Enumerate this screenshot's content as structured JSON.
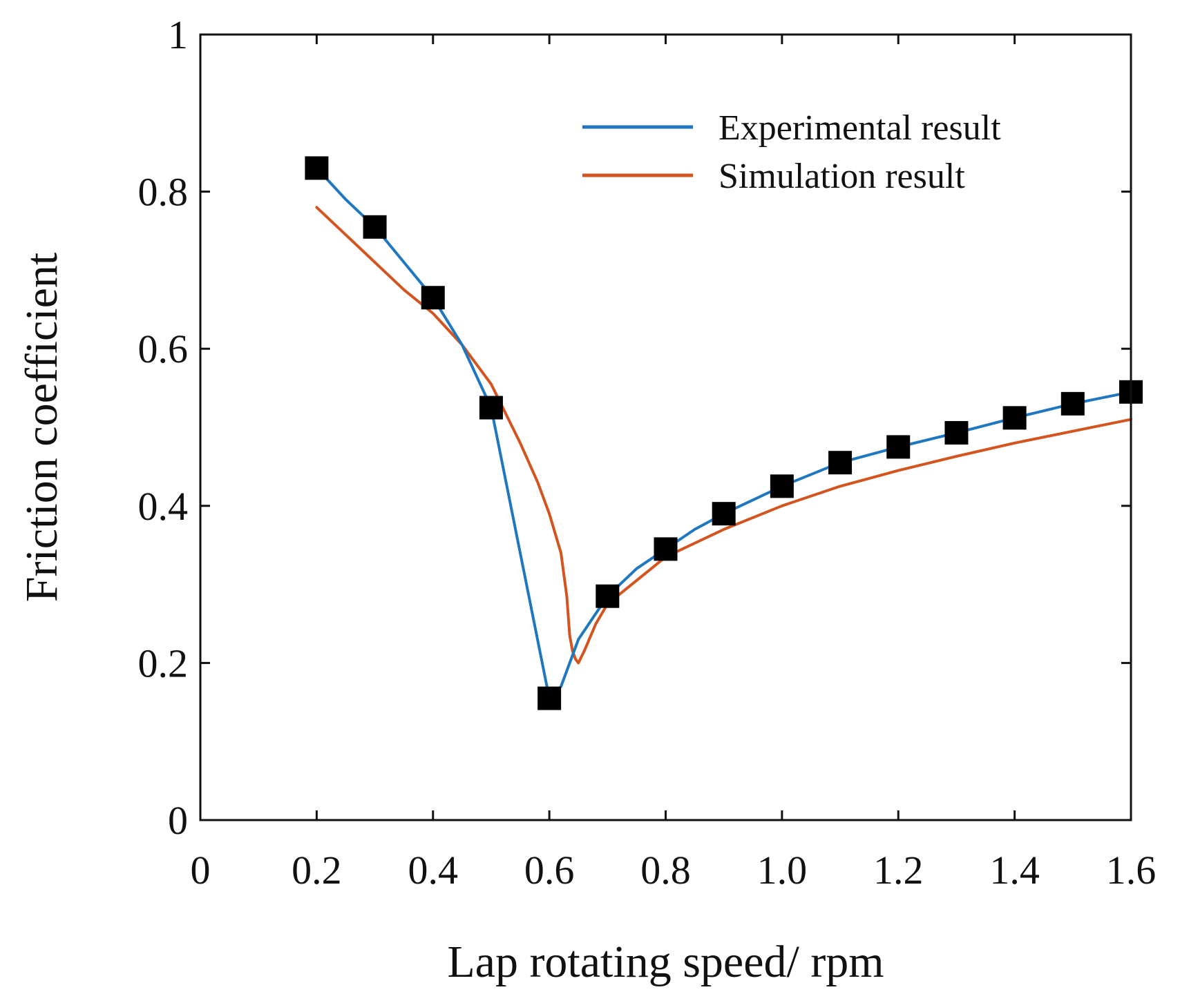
{
  "chart_data": {
    "type": "line",
    "title": "",
    "xlabel": "Lap rotating speed/ rpm",
    "ylabel": "Friction coefficient",
    "xlim": [
      0,
      1.6
    ],
    "ylim": [
      0,
      1
    ],
    "x_ticks": [
      0,
      0.2,
      0.4,
      0.6,
      0.8,
      1.0,
      1.2,
      1.4,
      1.6
    ],
    "x_tick_labels": [
      "0",
      "0.2",
      "0.4",
      "0.6",
      "0.8",
      "1.0",
      "1.2",
      "1.4",
      "1.6"
    ],
    "y_ticks": [
      0,
      0.2,
      0.4,
      0.6,
      0.8,
      1
    ],
    "y_tick_labels": [
      "0",
      "0.2",
      "0.4",
      "0.6",
      "0.8",
      "1"
    ],
    "grid": false,
    "legend_position": "top-right",
    "series": [
      {
        "name": "Experimental result",
        "color": "#1f77c0",
        "x": [
          0.2,
          0.25,
          0.3,
          0.35,
          0.4,
          0.45,
          0.5,
          0.55,
          0.6,
          0.62,
          0.65,
          0.7,
          0.75,
          0.8,
          0.85,
          0.9,
          1.0,
          1.1,
          1.2,
          1.3,
          1.4,
          1.5,
          1.6
        ],
        "y": [
          0.83,
          0.79,
          0.755,
          0.71,
          0.665,
          0.605,
          0.525,
          0.34,
          0.155,
          0.17,
          0.23,
          0.285,
          0.32,
          0.345,
          0.37,
          0.39,
          0.425,
          0.455,
          0.475,
          0.493,
          0.512,
          0.53,
          0.545
        ],
        "markers": {
          "shape": "square",
          "color": "#000000",
          "x": [
            0.2,
            0.3,
            0.4,
            0.5,
            0.6,
            0.7,
            0.8,
            0.9,
            1.0,
            1.1,
            1.2,
            1.3,
            1.4,
            1.5,
            1.6
          ],
          "y": [
            0.83,
            0.755,
            0.665,
            0.525,
            0.155,
            0.285,
            0.345,
            0.39,
            0.425,
            0.455,
            0.475,
            0.493,
            0.512,
            0.53,
            0.545
          ]
        }
      },
      {
        "name": "Simulation result",
        "color": "#d4541f",
        "x": [
          0.2,
          0.25,
          0.3,
          0.35,
          0.4,
          0.45,
          0.5,
          0.55,
          0.58,
          0.6,
          0.62,
          0.63,
          0.635,
          0.64,
          0.645,
          0.65,
          0.66,
          0.68,
          0.7,
          0.75,
          0.8,
          0.9,
          1.0,
          1.1,
          1.2,
          1.3,
          1.4,
          1.5,
          1.6
        ],
        "y": [
          0.78,
          0.745,
          0.71,
          0.675,
          0.645,
          0.605,
          0.555,
          0.48,
          0.43,
          0.39,
          0.34,
          0.285,
          0.235,
          0.215,
          0.205,
          0.2,
          0.215,
          0.25,
          0.275,
          0.305,
          0.335,
          0.37,
          0.4,
          0.425,
          0.445,
          0.463,
          0.48,
          0.495,
          0.51
        ]
      }
    ]
  }
}
